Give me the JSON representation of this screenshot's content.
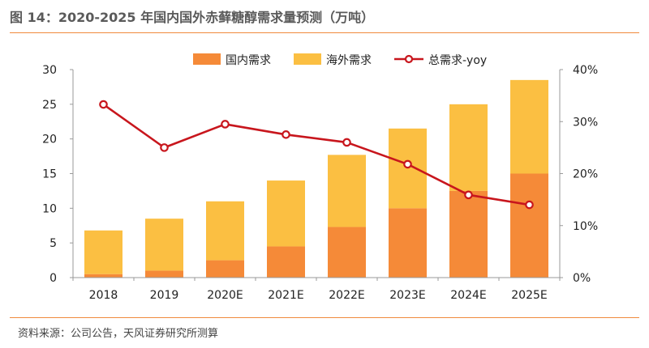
{
  "title": "图 14：2020-2025 年国内国外赤藓糖醇需求量预测（万吨）",
  "source": "资料来源：公司公告，天风证券研究所测算",
  "colors": {
    "domestic": "#f58a38",
    "overseas": "#fbbf42",
    "yoy": "#c8161d",
    "rule": "#f08a3c"
  },
  "chart_data": {
    "type": "bar",
    "stacked": true,
    "categories": [
      "2018",
      "2019",
      "2020E",
      "2021E",
      "2022E",
      "2023E",
      "2024E",
      "2025E"
    ],
    "series": [
      {
        "name": "国内需求",
        "kind": "bar",
        "axis": "left",
        "values": [
          0.5,
          1.0,
          2.5,
          4.5,
          7.3,
          10.0,
          12.5,
          15.0
        ]
      },
      {
        "name": "海外需求",
        "kind": "bar",
        "axis": "left",
        "values": [
          6.3,
          7.5,
          8.5,
          9.5,
          10.4,
          11.5,
          12.5,
          13.5
        ]
      },
      {
        "name": "总需求-yoy",
        "kind": "line",
        "axis": "right",
        "unit": "%",
        "values": [
          33.3,
          25.0,
          29.5,
          27.5,
          26.0,
          21.8,
          15.9,
          14.0
        ]
      }
    ],
    "ylim": [
      0,
      30
    ],
    "yticks": [
      "0",
      "5",
      "10",
      "15",
      "20",
      "25",
      "30"
    ],
    "y2lim": [
      0,
      40
    ],
    "y2ticks": [
      "0%",
      "10%",
      "20%",
      "30%",
      "40%"
    ],
    "legend": "top",
    "grid": false
  }
}
